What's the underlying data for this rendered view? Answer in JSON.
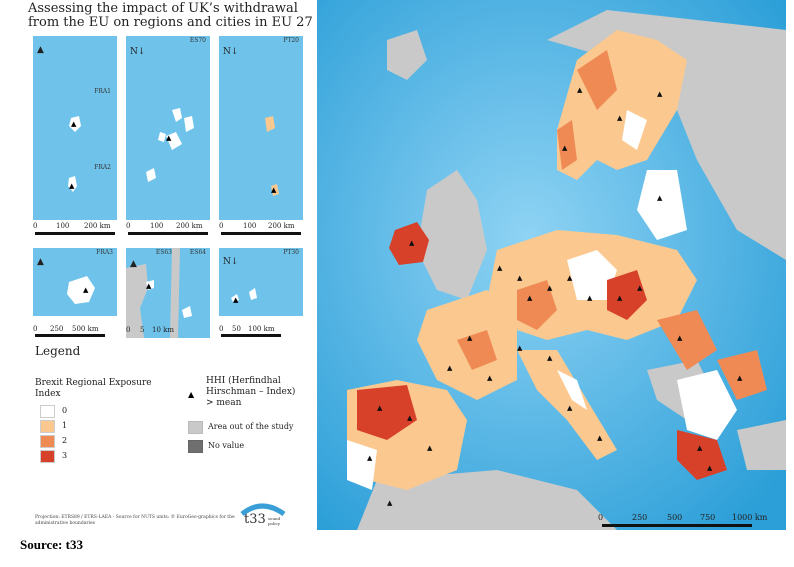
{
  "title": "Assessing the impact of UK’s withdrawal from the EU on regions and cities in EU 27",
  "insets": [
    {
      "labels": [
        "FRA1",
        "FRA2"
      ],
      "scale": [
        "0",
        "100",
        "200 km"
      ]
    },
    {
      "labels": [
        "ES70"
      ],
      "scale": [
        "0",
        "100",
        "200 km"
      ]
    },
    {
      "labels": [
        "PT20"
      ],
      "scale": [
        "0",
        "100",
        "200 km"
      ]
    },
    {
      "labels": [
        "FRA3"
      ],
      "scale": [
        "0",
        "250",
        "500 km"
      ]
    },
    {
      "labels": [
        "ES63",
        "ES64"
      ],
      "scale": [
        "0",
        "5",
        "10 km"
      ]
    },
    {
      "labels": [
        "PT30"
      ],
      "scale": [
        "0",
        "50",
        "100 km"
      ]
    }
  ],
  "north": "N",
  "legend": {
    "heading": "Legend",
    "index_title": "Brexit Regional Exposure Index",
    "classes": [
      {
        "label": "0",
        "color": "#ffffff"
      },
      {
        "label": "1",
        "color": "#fbc98f"
      },
      {
        "label": "2",
        "color": "#ef8a55"
      },
      {
        "label": "3",
        "color": "#d7412a"
      }
    ],
    "hhi": "HHI (Herfindhal Hirschman – Index) > mean",
    "out_of_study": "Area out of the study",
    "no_value": "No value",
    "colors": {
      "out": "#c9c9c9",
      "novalue": "#6f6f6f",
      "sea": "#6fc3ea"
    }
  },
  "projection": "Projection: ETRS89 / ETRS-LAEA - Source for NUTS units: © EuroGeo-graphics for the administrative boundaries",
  "logo": {
    "text": "t33",
    "sub": "sound policy"
  },
  "main_scale": [
    "0",
    "250",
    "500",
    "750",
    "1000 km"
  ],
  "source": "Source: t33"
}
